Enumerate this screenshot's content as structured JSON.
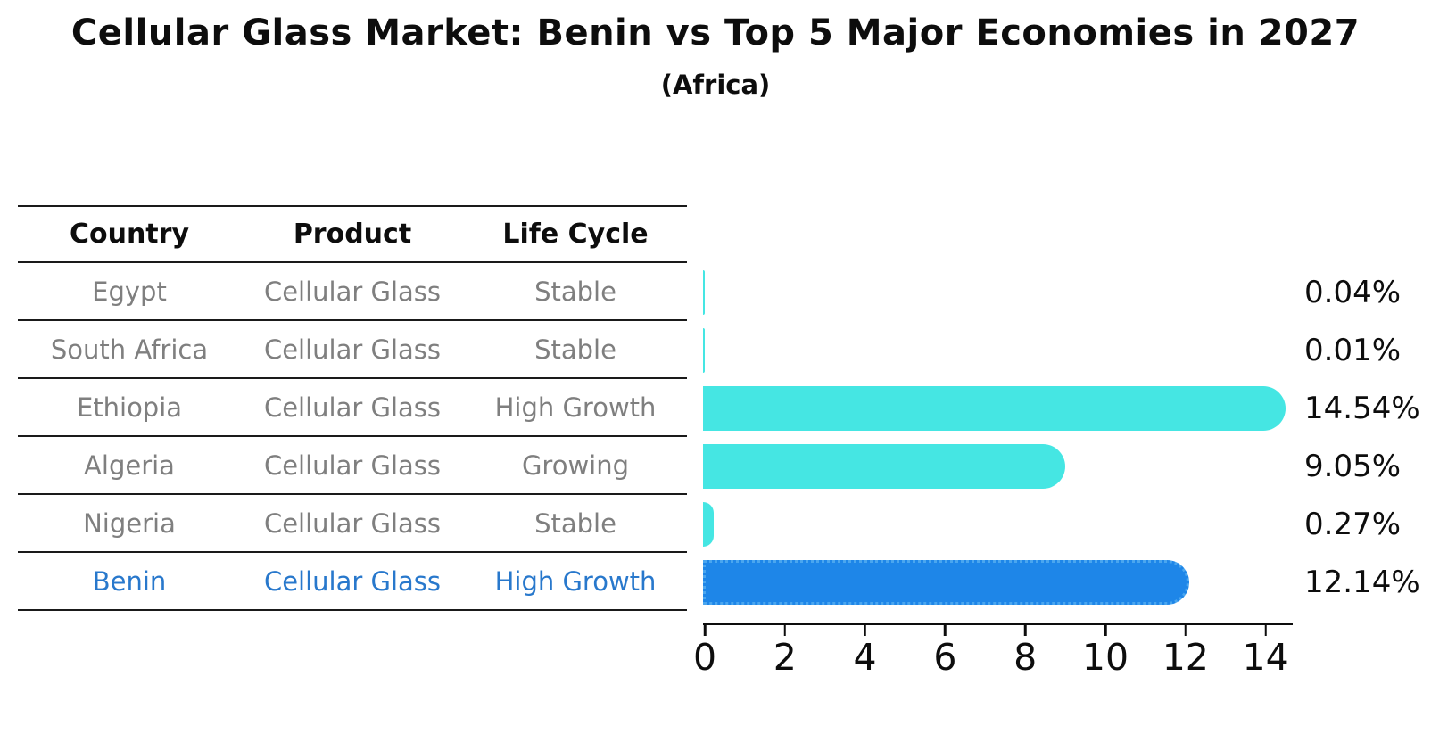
{
  "title": "Cellular Glass Market: Benin vs Top 5 Major Economies in 2027",
  "subtitle": "(Africa)",
  "table": {
    "headers": [
      "Country",
      "Product",
      "Life Cycle"
    ],
    "rows": [
      {
        "country": "Egypt",
        "product": "Cellular Glass",
        "life_cycle": "Stable",
        "highlight": false
      },
      {
        "country": "South Africa",
        "product": "Cellular Glass",
        "life_cycle": "Stable",
        "highlight": false
      },
      {
        "country": "Ethiopia",
        "product": "Cellular Glass",
        "life_cycle": "High Growth",
        "highlight": false
      },
      {
        "country": "Algeria",
        "product": "Cellular Glass",
        "life_cycle": "Growing",
        "highlight": false
      },
      {
        "country": "Nigeria",
        "product": "Cellular Glass",
        "life_cycle": "Stable",
        "highlight": false
      },
      {
        "country": "Benin",
        "product": "Cellular Glass",
        "life_cycle": "High Growth",
        "highlight": true
      }
    ]
  },
  "chart_data": {
    "type": "bar",
    "orientation": "horizontal",
    "title": "Cellular Glass Market: Benin vs Top 5 Major Economies in 2027",
    "subtitle": "(Africa)",
    "categories": [
      "Egypt",
      "South Africa",
      "Ethiopia",
      "Algeria",
      "Nigeria",
      "Benin"
    ],
    "values": [
      0.04,
      0.01,
      14.54,
      9.05,
      0.27,
      12.14
    ],
    "value_labels": [
      "0.04%",
      "0.01%",
      "14.54%",
      "9.05%",
      "0.27%",
      "12.14%"
    ],
    "xticks": [
      0,
      2,
      4,
      6,
      8,
      10,
      12,
      14
    ],
    "xlim": [
      0,
      14.7
    ],
    "grid": false,
    "legend": false,
    "bar_color": "#45E6E3",
    "highlight_index": 5,
    "highlight_color": "#1E86E8",
    "highlight_edge_color": "#4AA6EF",
    "highlight_text_color": "#2878CC"
  }
}
